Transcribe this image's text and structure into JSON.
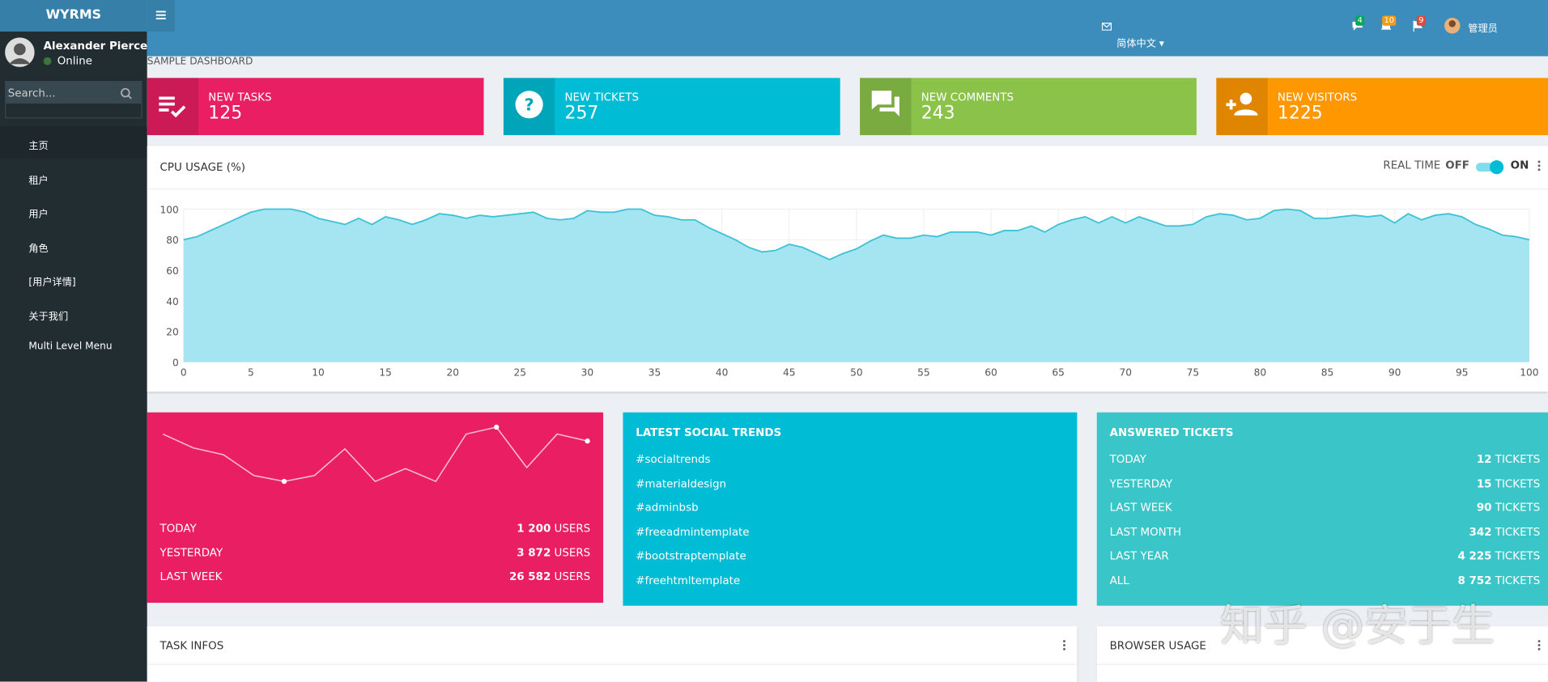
{
  "app": {
    "logo": "WYRMS",
    "user": "Alexander Pierce",
    "status": "Online",
    "search_placeholder": "Search...",
    "menu": [
      "主页",
      "租户",
      "用户",
      "角色",
      "[用户详情]",
      "关于我们",
      "Multi Level Menu"
    ]
  },
  "header": {
    "language": "简体中文",
    "badges": [
      "4",
      "10",
      "9"
    ],
    "account": "管理员"
  },
  "breadcrumb": "SAMPLE DASHBOARD",
  "info_boxes": [
    {
      "label": "NEW TASKS",
      "value": "125"
    },
    {
      "label": "NEW TICKETS",
      "value": "257"
    },
    {
      "label": "NEW COMMENTS",
      "value": "243"
    },
    {
      "label": "NEW VISITORS",
      "value": "1225"
    }
  ],
  "cpu_chart": {
    "type": "area",
    "title": "CPU USAGE (%)",
    "realtime_label": "REAL TIME",
    "off_label": "OFF",
    "on_label": "ON",
    "color": "#3ec2d6",
    "fill": "#a0e4f0",
    "grid": true,
    "x": [
      0,
      1,
      2,
      3,
      4,
      5,
      6,
      7,
      8,
      9,
      10,
      11,
      12,
      13,
      14,
      15,
      16,
      17,
      18,
      19,
      20,
      21,
      22,
      23,
      24,
      25,
      26,
      27,
      28,
      29,
      30,
      31,
      32,
      33,
      34,
      35,
      36,
      37,
      38,
      39,
      40,
      41,
      42,
      43,
      44,
      45,
      46,
      47,
      48,
      49,
      50,
      51,
      52,
      53,
      54,
      55,
      56,
      57,
      58,
      59,
      60,
      61,
      62,
      63,
      64,
      65,
      66,
      67,
      68,
      69,
      70,
      71,
      72,
      73,
      74,
      75,
      76,
      77,
      78,
      79,
      80,
      81,
      82,
      83,
      84,
      85,
      86,
      87,
      88,
      89,
      90,
      91,
      92,
      93,
      94,
      95,
      96,
      97,
      98,
      99,
      100
    ],
    "values": [
      80,
      82,
      86,
      90,
      94,
      98,
      100,
      100,
      100,
      98,
      94,
      92,
      90,
      94,
      90,
      95,
      93,
      90,
      93,
      97,
      96,
      94,
      96,
      95,
      96,
      97,
      98,
      94,
      93,
      94,
      99,
      98,
      98,
      100,
      100,
      96,
      95,
      93,
      93,
      88,
      84,
      80,
      75,
      72,
      73,
      77,
      75,
      71,
      67,
      71,
      74,
      79,
      83,
      81,
      81,
      83,
      82,
      85,
      85,
      85,
      83,
      86,
      86,
      89,
      85,
      90,
      93,
      95,
      91,
      95,
      91,
      95,
      92,
      89,
      89,
      90,
      95,
      97,
      96,
      93,
      94,
      99,
      100,
      99,
      94,
      94,
      95,
      96,
      95,
      96,
      91,
      97,
      93,
      96,
      97,
      95,
      90,
      87,
      83,
      82,
      80
    ],
    "xlim": [
      0,
      100
    ],
    "xticks": [
      0,
      5,
      10,
      15,
      20,
      25,
      30,
      35,
      40,
      45,
      50,
      55,
      60,
      65,
      70,
      75,
      80,
      85,
      90,
      95,
      100
    ],
    "ylim": [
      0,
      100
    ],
    "yticks": [
      0,
      20,
      40,
      60,
      80,
      100
    ]
  },
  "users_panel": {
    "type": "line",
    "color": "#f8bbd0",
    "values": [
      60,
      46,
      39,
      18,
      12,
      18,
      45,
      12,
      25,
      12,
      60,
      67,
      26,
      60,
      53
    ],
    "rows": [
      {
        "label": "TODAY",
        "value": "1 200",
        "unit": "USERS"
      },
      {
        "label": "YESTERDAY",
        "value": "3 872",
        "unit": "USERS"
      },
      {
        "label": "LAST WEEK",
        "value": "26 582",
        "unit": "USERS"
      }
    ]
  },
  "social_trends": {
    "title": "LATEST SOCIAL TRENDS",
    "items": [
      {
        "tag": "#socialtrends",
        "trending": true
      },
      {
        "tag": "#materialdesign",
        "trending": true
      },
      {
        "tag": "#adminbsb",
        "trending": false
      },
      {
        "tag": "#freeadmintemplate",
        "trending": false
      },
      {
        "tag": "#bootstraptemplate",
        "trending": false
      },
      {
        "tag": "#freehtmltemplate",
        "trending": true
      }
    ]
  },
  "answered_tickets": {
    "title": "ANSWERED TICKETS",
    "rows": [
      {
        "label": "TODAY",
        "value": "12",
        "unit": "TICKETS"
      },
      {
        "label": "YESTERDAY",
        "value": "15",
        "unit": "TICKETS"
      },
      {
        "label": "LAST WEEK",
        "value": "90",
        "unit": "TICKETS"
      },
      {
        "label": "LAST MONTH",
        "value": "342",
        "unit": "TICKETS"
      },
      {
        "label": "LAST YEAR",
        "value": "4 225",
        "unit": "TICKETS"
      },
      {
        "label": "ALL",
        "value": "8 752",
        "unit": "TICKETS"
      }
    ]
  },
  "task_infos": {
    "title": "TASK INFOS"
  },
  "browser_usage": {
    "title": "BROWSER USAGE"
  },
  "watermark": "知乎 @安于生"
}
